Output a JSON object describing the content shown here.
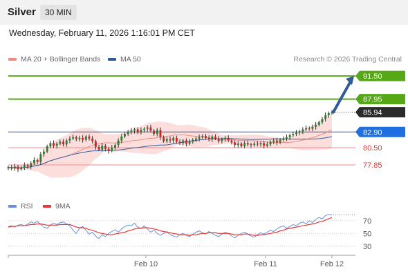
{
  "header": {
    "instrument": "Silver",
    "timeframe": "30 MIN"
  },
  "datetime": "Wednesday, February 11, 2026 1:16:01 PM CET",
  "legend": {
    "bollinger": {
      "label": "MA 20 + Bollinger Bands",
      "color": "#f28b82"
    },
    "ma50": {
      "label": "MA 50",
      "color": "#2f5b9a"
    }
  },
  "credit": "Research © 2026 Trading Central",
  "rsi_legend": {
    "rsi": {
      "label": "RSI",
      "color": "#6b8fd6"
    },
    "ma9": {
      "label": "9MA",
      "color": "#e53935"
    }
  },
  "chart_data": {
    "type": "candlestick",
    "ylim": [
      73.5,
      93.0
    ],
    "current_price": 85.94,
    "levels": [
      {
        "value": 91.5,
        "label": "91.50",
        "style": "resistance",
        "color": "#56a817"
      },
      {
        "value": 87.95,
        "label": "87.95",
        "style": "resistance",
        "color": "#56a817"
      },
      {
        "value": 85.94,
        "label": "85.94",
        "style": "last",
        "color": "#2b2b2b"
      },
      {
        "value": 82.9,
        "label": "82.90",
        "style": "pivot",
        "color": "#1f6fe0"
      },
      {
        "value": 80.5,
        "label": "80.50",
        "style": "support",
        "color": "#e53935"
      },
      {
        "value": 77.85,
        "label": "77.85",
        "style": "support",
        "color": "#e53935"
      }
    ],
    "arrow": {
      "from": 85.94,
      "to": 91.5,
      "color": "#2f5b9a"
    },
    "x_ticks": [
      "Feb 10",
      "Feb 11",
      "Feb 12"
    ],
    "closes": [
      77.5,
      77.3,
      77.6,
      77.2,
      77.4,
      77.8,
      77.6,
      78.1,
      78.6,
      78.3,
      79.5,
      79.9,
      80.7,
      81.2,
      80.8,
      81.1,
      81.4,
      81.0,
      81.6,
      81.9,
      82.1,
      81.8,
      82.0,
      81.7,
      82.2,
      81.9,
      81.5,
      80.6,
      80.2,
      80.8,
      80.3,
      80.0,
      80.5,
      80.9,
      81.6,
      82.2,
      82.6,
      82.9,
      83.1,
      83.3,
      82.8,
      83.2,
      83.4,
      83.6,
      83.1,
      82.6,
      83.2,
      82.1,
      81.5,
      81.8,
      81.6,
      82.0,
      81.4,
      81.2,
      81.6,
      81.1,
      81.4,
      81.7,
      81.9,
      82.1,
      82.3,
      82.0,
      81.8,
      82.2,
      81.9,
      81.5,
      81.8,
      82.0,
      81.6,
      81.3,
      80.9,
      81.1,
      80.7,
      81.2,
      81.0,
      80.9,
      81.1,
      81.0,
      81.2,
      80.8,
      81.0,
      81.4,
      81.6,
      81.3,
      81.7,
      81.9,
      82.1,
      82.4,
      82.6,
      82.8,
      83.0,
      83.3,
      83.5,
      83.4,
      83.7,
      84.0,
      84.4,
      84.9,
      85.5,
      85.8,
      85.94
    ],
    "rsi": {
      "ylim": [
        20,
        85
      ],
      "ticks": [
        70,
        50,
        30
      ],
      "values": [
        61,
        62,
        60,
        63,
        64,
        62,
        65,
        68,
        66,
        69,
        64,
        60,
        58,
        63,
        66,
        64,
        67,
        68,
        65,
        62,
        55,
        50,
        58,
        61,
        55,
        49,
        52,
        46,
        42,
        48,
        45,
        50,
        53,
        56,
        52,
        57,
        61,
        63,
        62,
        66,
        60,
        58,
        62,
        57,
        52,
        55,
        50,
        47,
        50,
        53,
        48,
        46,
        44,
        48,
        50,
        47,
        45,
        49,
        52,
        54,
        51,
        49,
        53,
        50,
        47,
        45,
        49,
        52,
        50,
        46,
        43,
        47,
        50,
        52,
        49,
        46,
        44,
        48,
        51,
        49,
        52,
        55,
        53,
        57,
        60,
        62,
        58,
        61,
        64,
        62,
        66,
        68,
        65,
        70,
        67,
        72,
        75,
        73,
        78,
        80,
        79
      ],
      "ma9": [
        60,
        61,
        61,
        62,
        62,
        62,
        63,
        64,
        64,
        65,
        65,
        64,
        63,
        63,
        63,
        63,
        64,
        64,
        64,
        64,
        62,
        60,
        59,
        59,
        58,
        56,
        55,
        53,
        51,
        50,
        49,
        48,
        48,
        49,
        50,
        51,
        52,
        54,
        55,
        57,
        58,
        58,
        59,
        59,
        58,
        57,
        56,
        54,
        53,
        52,
        51,
        50,
        49,
        48,
        48,
        48,
        47,
        48,
        48,
        49,
        50,
        50,
        51,
        51,
        51,
        50,
        50,
        50,
        50,
        49,
        48,
        48,
        48,
        49,
        49,
        48,
        47,
        47,
        48,
        48,
        49,
        50,
        51,
        52,
        54,
        55,
        57,
        58,
        59,
        60,
        61,
        62,
        63,
        64,
        65,
        66,
        68,
        69,
        71,
        73,
        75
      ]
    }
  }
}
